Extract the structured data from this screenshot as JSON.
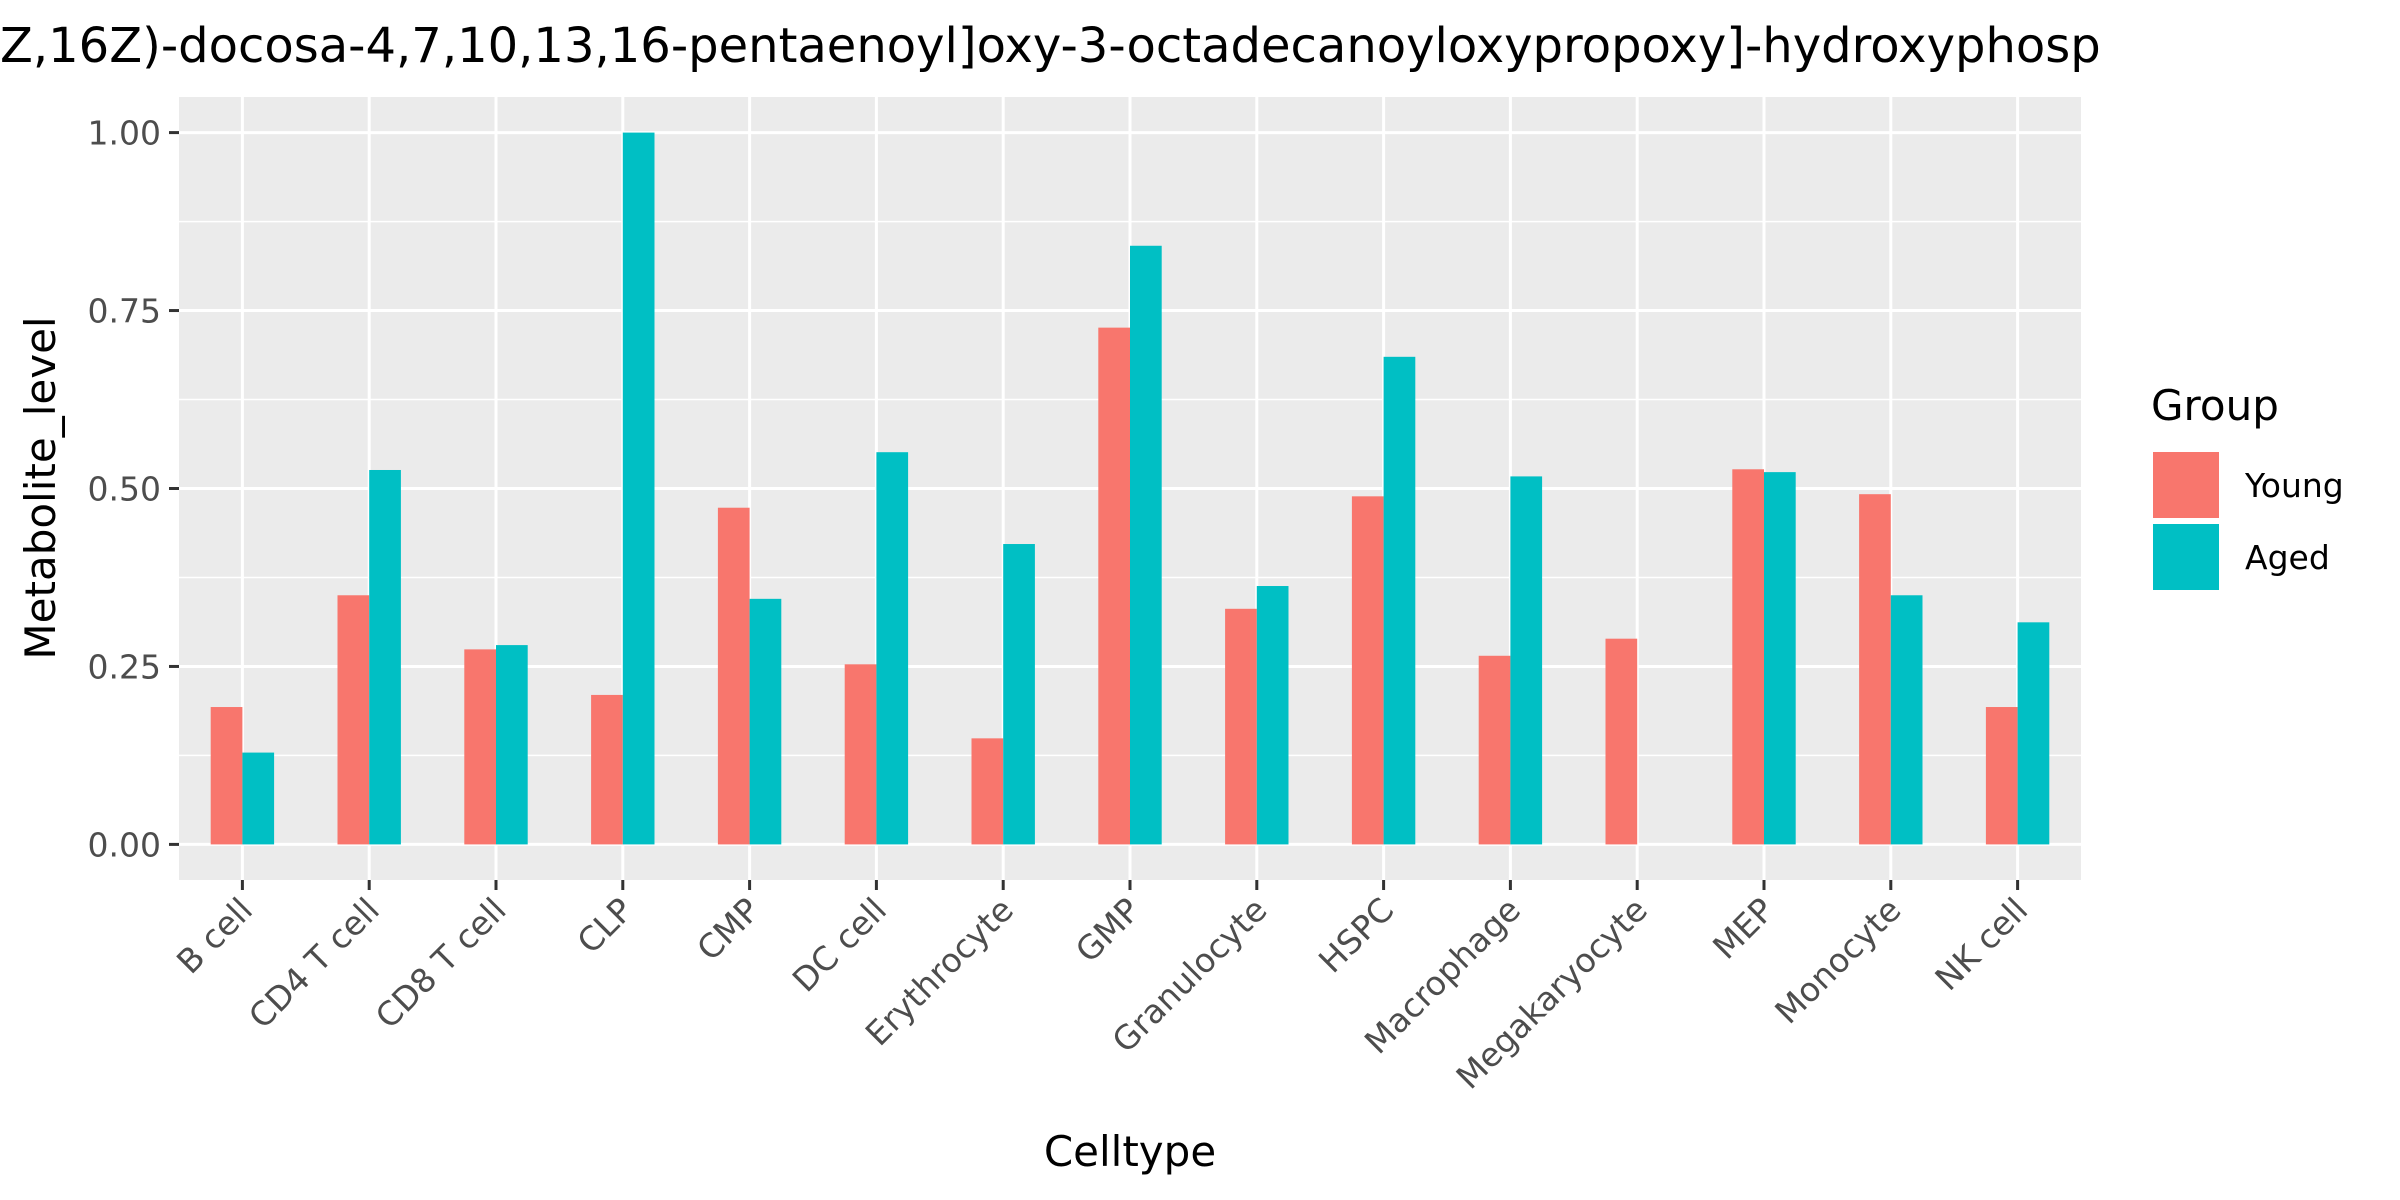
{
  "chart_data": {
    "type": "bar",
    "title": "Z,16Z)-docosa-4,7,10,13,16-pentaenoyl]oxy-3-octadecanoyloxypropoxy]-hydroxyphosp",
    "xlabel": "Celltype",
    "ylabel": "Metabolite_level",
    "ylim": [
      -0.05,
      1.05
    ],
    "yticks": [
      0.0,
      0.25,
      0.5,
      0.75,
      1.0
    ],
    "ytick_labels": [
      "0.00",
      "0.25",
      "0.50",
      "0.75",
      "1.00"
    ],
    "grid": true,
    "legend": {
      "title": "Group",
      "position": "right"
    },
    "categories": [
      "B cell",
      "CD4 T cell",
      "CD8 T cell",
      "CLP",
      "CMP",
      "DC cell",
      "Erythrocyte",
      "GMP",
      "Granulocyte",
      "HSPC",
      "Macrophage",
      "Megakaryocyte",
      "MEP",
      "Monocyte",
      "NK cell"
    ],
    "series": [
      {
        "name": "Young",
        "color": "#F8766D",
        "values": [
          0.193,
          0.35,
          0.274,
          0.21,
          0.473,
          0.253,
          0.149,
          0.726,
          0.331,
          0.489,
          0.265,
          0.289,
          0.527,
          0.492,
          0.193
        ]
      },
      {
        "name": "Aged",
        "color": "#00BFC4",
        "values": [
          0.129,
          0.526,
          0.28,
          1.0,
          0.345,
          0.551,
          0.422,
          0.841,
          0.363,
          0.685,
          0.517,
          null,
          0.523,
          0.35,
          0.312
        ]
      }
    ]
  }
}
